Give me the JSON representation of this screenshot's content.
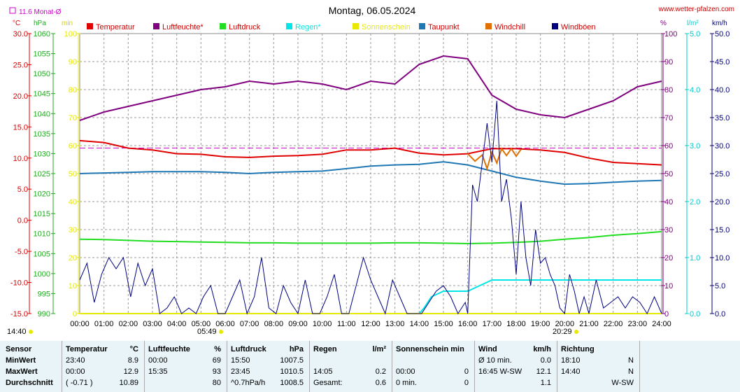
{
  "header": {
    "title": "Montag, 06.05.2024",
    "site": "www.wetter-pfalzen.com",
    "monthly_avg": "11.6 Monat-Ø",
    "unit_temp": "°C",
    "unit_hpa": "hPa",
    "unit_min": "min",
    "unit_pct": "%",
    "unit_rain": "l/m²",
    "unit_wind": "km/h",
    "sunrise_clock": "14:40",
    "sunrise": "05:49",
    "sunset": "20:29"
  },
  "legend": [
    {
      "label": "Temperatur",
      "color": "#e00000"
    },
    {
      "label": "Luftfeuchte*",
      "color": "#800080"
    },
    {
      "label": "Luftdruck",
      "color": "#22dd22"
    },
    {
      "label": "Regen*",
      "color": "#00e5e5"
    },
    {
      "label": "Sonnenschein",
      "color": "#e8e800"
    },
    {
      "label": "Taupunkt",
      "color": "#1f77b4"
    },
    {
      "label": "Windchill",
      "color": "#e07000"
    },
    {
      "label": "Windböen",
      "color": "#000080"
    }
  ],
  "chart_data": {
    "type": "line",
    "x_ticks": [
      "00:00",
      "01:00",
      "02:00",
      "03:00",
      "04:00",
      "05:00",
      "06:00",
      "07:00",
      "08:00",
      "09:00",
      "10:00",
      "11:00",
      "12:00",
      "13:00",
      "14:00",
      "15:00",
      "16:00",
      "17:00",
      "18:00",
      "19:00",
      "20:00",
      "21:00",
      "22:00",
      "23:00",
      "24:00"
    ],
    "axes": {
      "temp": {
        "range": [
          -15,
          30
        ],
        "ticks": [
          "30.0",
          "25.0",
          "20.0",
          "15.0",
          "10.0",
          "5.0",
          "0.0",
          "-5.0",
          "-10.0",
          "-15.0"
        ],
        "color": "#e00000"
      },
      "hpa": {
        "range": [
          990,
          1060
        ],
        "ticks": [
          "1060",
          "1055",
          "1050",
          "1045",
          "1040",
          "1035",
          "1030",
          "1025",
          "1020",
          "1015",
          "1010",
          "1005",
          "1000",
          "995",
          "990"
        ],
        "color": "#22aa22"
      },
      "min": {
        "range": [
          0,
          100
        ],
        "ticks": [
          "100",
          "90",
          "80",
          "70",
          "60",
          "50",
          "40",
          "30",
          "20",
          "10",
          "0"
        ],
        "color": "#e8e800"
      },
      "pct": {
        "range": [
          0,
          100
        ],
        "ticks": [
          "100",
          "90",
          "80",
          "70",
          "60",
          "50",
          "40",
          "30",
          "20",
          "10",
          "0"
        ],
        "color": "#800080"
      },
      "rain": {
        "range": [
          0,
          5
        ],
        "ticks": [
          "5.0",
          "4.0",
          "3.0",
          "2.0",
          "1.0",
          "0.0"
        ],
        "color": "#00cccc"
      },
      "wind": {
        "range": [
          0,
          50
        ],
        "ticks": [
          "50.0",
          "45.0",
          "40.0",
          "35.0",
          "30.0",
          "25.0",
          "20.0",
          "15.0",
          "10.0",
          "5.0",
          "0.0"
        ],
        "color": "#000080"
      }
    },
    "monthly_avg_temp": 11.6,
    "series": [
      {
        "name": "Temperatur",
        "axis": "temp",
        "color": "#e00000",
        "x": [
          0,
          1,
          2,
          3,
          4,
          5,
          6,
          7,
          8,
          9,
          10,
          11,
          12,
          13,
          14,
          15,
          16,
          17,
          18,
          19,
          20,
          21,
          22,
          23,
          24
        ],
        "y": [
          12.8,
          12.5,
          11.6,
          11.3,
          10.7,
          10.6,
          10.2,
          10.1,
          10.3,
          10.4,
          10.6,
          11.3,
          11.3,
          11.6,
          10.8,
          10.5,
          10.7,
          11.5,
          11.5,
          11.3,
          10.9,
          10.0,
          9.3,
          9.1,
          8.9
        ]
      },
      {
        "name": "Luftfeuchte*",
        "axis": "pct",
        "color": "#800080",
        "x": [
          0,
          1,
          2,
          3,
          4,
          5,
          6,
          7,
          8,
          9,
          10,
          11,
          12,
          13,
          14,
          15,
          16,
          17,
          18,
          19,
          20,
          21,
          22,
          23,
          24
        ],
        "y": [
          69,
          72,
          74,
          76,
          78,
          80,
          81,
          83,
          82,
          83,
          82,
          80,
          83,
          82,
          89,
          92,
          91,
          78,
          73,
          71,
          70,
          73,
          76,
          81,
          83
        ]
      },
      {
        "name": "Luftdruck",
        "axis": "hpa",
        "color": "#22dd22",
        "x": [
          0,
          1,
          2,
          3,
          4,
          5,
          6,
          7,
          8,
          9,
          10,
          11,
          12,
          13,
          14,
          15,
          16,
          17,
          18,
          19,
          20,
          21,
          22,
          23,
          24
        ],
        "y": [
          1008.6,
          1008.5,
          1008.3,
          1008.1,
          1008.0,
          1007.9,
          1007.8,
          1007.7,
          1007.7,
          1007.6,
          1007.6,
          1007.6,
          1007.6,
          1007.7,
          1007.7,
          1007.6,
          1007.5,
          1007.6,
          1007.8,
          1008.1,
          1008.6,
          1009.0,
          1009.6,
          1010.0,
          1010.5
        ]
      },
      {
        "name": "Regen*",
        "axis": "rain",
        "color": "#00e5e5",
        "x": [
          0,
          14.0,
          14.2,
          14.5,
          15.0,
          15.5,
          16.0,
          16.5,
          17.0,
          17.5,
          18.0,
          19.0,
          20.0,
          21.0,
          22.0,
          23.0,
          24.0
        ],
        "y": [
          0,
          0,
          0.1,
          0.3,
          0.4,
          0.4,
          0.4,
          0.5,
          0.6,
          0.6,
          0.6,
          0.6,
          0.6,
          0.6,
          0.6,
          0.6,
          0.6
        ]
      },
      {
        "name": "Sonnenschein",
        "axis": "min",
        "color": "#e8e800",
        "x": [
          0,
          24
        ],
        "y": [
          0,
          0
        ]
      },
      {
        "name": "Taupunkt",
        "axis": "temp",
        "color": "#1f77b4",
        "x": [
          0,
          1,
          2,
          3,
          4,
          5,
          6,
          7,
          8,
          9,
          10,
          11,
          12,
          13,
          14,
          15,
          16,
          17,
          18,
          19,
          20,
          21,
          22,
          23,
          24
        ],
        "y": [
          7.5,
          7.6,
          7.7,
          7.8,
          7.8,
          7.8,
          7.7,
          7.5,
          7.7,
          7.8,
          7.9,
          8.3,
          8.7,
          8.9,
          9.0,
          9.4,
          8.9,
          7.9,
          6.9,
          6.3,
          5.8,
          5.9,
          6.1,
          6.3,
          6.4
        ]
      },
      {
        "name": "Windchill",
        "axis": "temp",
        "color": "#e07000",
        "x": [
          16.0,
          16.3,
          16.6,
          16.8,
          17.0,
          17.2,
          17.4,
          17.6,
          17.8,
          18.0,
          18.2
        ],
        "y": [
          10.7,
          9.5,
          10.5,
          8.3,
          11.0,
          9.2,
          11.5,
          10.4,
          11.5,
          10.3,
          11.4
        ]
      },
      {
        "name": "Windböen",
        "axis": "wind",
        "color": "#000080",
        "x": [
          0,
          0.3,
          0.6,
          0.9,
          1.2,
          1.5,
          1.8,
          2.1,
          2.4,
          2.7,
          3.0,
          3.3,
          3.6,
          3.9,
          4.2,
          4.5,
          4.8,
          5.1,
          5.4,
          5.7,
          6.0,
          6.3,
          6.6,
          6.9,
          7.2,
          7.5,
          7.8,
          8.1,
          8.4,
          8.7,
          9.0,
          9.3,
          9.6,
          9.9,
          10.2,
          10.5,
          10.8,
          11.1,
          11.4,
          11.7,
          12.0,
          12.3,
          12.6,
          12.9,
          13.2,
          13.5,
          13.8,
          14.1,
          14.4,
          14.7,
          15.0,
          15.3,
          15.6,
          15.9,
          16.0,
          16.2,
          16.4,
          16.6,
          16.8,
          17.0,
          17.2,
          17.4,
          17.6,
          17.8,
          18.0,
          18.2,
          18.4,
          18.6,
          18.8,
          19.0,
          19.2,
          19.4,
          19.6,
          19.8,
          20.0,
          20.2,
          20.4,
          20.6,
          20.8,
          21.0,
          21.3,
          21.6,
          21.9,
          22.2,
          22.5,
          22.8,
          23.1,
          23.4,
          23.7,
          24.0
        ],
        "y": [
          6,
          9,
          2,
          7,
          10,
          8,
          10,
          3,
          9,
          5,
          8,
          0,
          1,
          3,
          0,
          1,
          0,
          3,
          5,
          0,
          0,
          3,
          6,
          0,
          3,
          10,
          1,
          0,
          5,
          2,
          0,
          6,
          0,
          0,
          3,
          7,
          0,
          0,
          5,
          10,
          6,
          3,
          0,
          6,
          3,
          0,
          0,
          0,
          2,
          4,
          5,
          3,
          0,
          2,
          0,
          23,
          20,
          27,
          34,
          27,
          38,
          20,
          24,
          17,
          7,
          20,
          10,
          5,
          15,
          9,
          10,
          7,
          5,
          1,
          0,
          7,
          4,
          0,
          3,
          0,
          6,
          1,
          2,
          3,
          1,
          3,
          2,
          0,
          3,
          0
        ]
      }
    ]
  },
  "table": {
    "row_labels": [
      "Sensor",
      "MinWert",
      "MaxWert",
      "Durchschnitt"
    ],
    "columns": [
      {
        "header": "Temperatur",
        "unit": "°C",
        "rows": [
          [
            "23:40",
            "8.9"
          ],
          [
            "00:00",
            "12.9"
          ],
          [
            "( -0.71 )",
            "10.89"
          ]
        ]
      },
      {
        "header": "Luftfeuchte",
        "unit": "%",
        "rows": [
          [
            "00:00",
            "69"
          ],
          [
            "15:35",
            "93"
          ],
          [
            "",
            "80"
          ]
        ]
      },
      {
        "header": "Luftdruck",
        "unit": "hPa",
        "rows": [
          [
            "15:50",
            "1007.5"
          ],
          [
            "23:45",
            "1010.5"
          ],
          [
            "^0.7hPa/h",
            "1008.5"
          ]
        ]
      },
      {
        "header": "Regen",
        "unit": "l/m²",
        "rows": [
          [
            "",
            ""
          ],
          [
            "14:05",
            "0.2"
          ],
          [
            "Gesamt:",
            "0.6"
          ]
        ]
      },
      {
        "header": "Sonnenschein min",
        "unit": "",
        "rows": [
          [
            "",
            ""
          ],
          [
            "00:00",
            "0"
          ],
          [
            "0 min.",
            "0"
          ]
        ]
      },
      {
        "header": "Wind",
        "unit": "km/h",
        "rows": [
          [
            "Ø 10 min.",
            "0.0"
          ],
          [
            "16:45   W-SW",
            "12.1"
          ],
          [
            "",
            "1.1"
          ]
        ]
      },
      {
        "header": "Richtung",
        "unit": "",
        "rows": [
          [
            "18:10",
            "N"
          ],
          [
            "14:40",
            "N"
          ],
          [
            "",
            "W-SW"
          ]
        ]
      }
    ]
  }
}
